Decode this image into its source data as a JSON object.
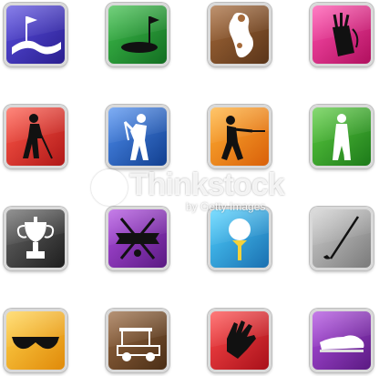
{
  "watermark": {
    "brand": "Thinkstock",
    "credit": "by Getty Images"
  },
  "icons": [
    {
      "name": "golf-flag-green-icon",
      "color": "#3b2fb5"
    },
    {
      "name": "golf-hole-flag-icon",
      "color": "#1f8f2e"
    },
    {
      "name": "golf-course-map-icon",
      "color": "#7a4a25"
    },
    {
      "name": "golf-bag-icon",
      "color": "#d9267e"
    },
    {
      "name": "golfer-putting-icon",
      "color": "#d62a2a"
    },
    {
      "name": "golfer-follow-through-icon",
      "color": "#2266c8"
    },
    {
      "name": "golfer-swing-icon",
      "color": "#f08a12"
    },
    {
      "name": "golfer-address-icon",
      "color": "#3aa52a"
    },
    {
      "name": "trophy-cup-icon",
      "color": "#3c3c3c"
    },
    {
      "name": "crossed-clubs-banner-icon",
      "color": "#8a2fb0"
    },
    {
      "name": "golf-ball-tee-icon",
      "color": "#1fa3d6"
    },
    {
      "name": "golf-club-icon",
      "color": "#9e9e9e"
    },
    {
      "name": "sunglasses-icon",
      "color": "#f5b215"
    },
    {
      "name": "golf-cart-icon",
      "color": "#6e4a2a"
    },
    {
      "name": "golf-glove-icon",
      "color": "#d81f2a"
    },
    {
      "name": "golf-shoe-icon",
      "color": "#8a2fa8"
    }
  ]
}
